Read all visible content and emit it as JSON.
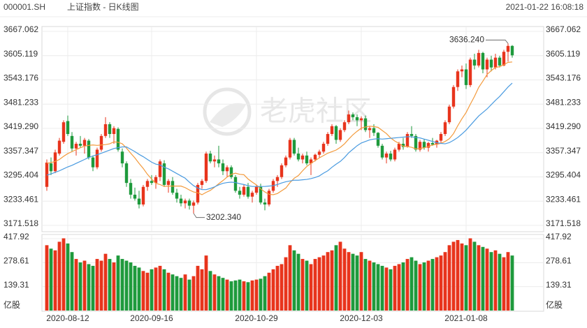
{
  "header": {
    "code": "000001.SH",
    "name": "上证指数 - 日K线图",
    "time": "2021-01-22 16:08:18"
  },
  "watermark": "老虎社区",
  "chart_data": {
    "type": "candlestick",
    "categories": [
      null,
      null,
      null,
      null,
      null,
      "2020-08-12",
      null,
      null,
      null,
      null,
      null,
      null,
      null,
      null,
      null,
      null,
      null,
      null,
      null,
      null,
      null,
      null,
      null,
      null,
      null,
      "2020-09-16",
      null,
      null,
      null,
      null,
      null,
      null,
      null,
      null,
      null,
      null,
      null,
      null,
      null,
      null,
      null,
      null,
      null,
      null,
      null,
      null,
      null,
      null,
      null,
      null,
      "2020-10-29",
      null,
      null,
      null,
      null,
      null,
      null,
      null,
      null,
      null,
      null,
      null,
      null,
      null,
      null,
      null,
      null,
      null,
      null,
      null,
      null,
      null,
      null,
      null,
      null,
      "2020-12-03",
      null,
      null,
      null,
      null,
      null,
      null,
      null,
      null,
      null,
      null,
      null,
      null,
      null,
      null,
      null,
      null,
      null,
      null,
      null,
      null,
      null,
      null,
      null,
      null,
      "2021-01-08",
      null,
      null,
      null,
      null,
      null,
      null,
      null,
      null,
      null,
      null,
      null
    ],
    "open": [
      3270,
      3330,
      3310,
      3355,
      3385,
      3438,
      3400,
      3368,
      3380,
      3375,
      3388,
      3345,
      3320,
      3365,
      3400,
      3430,
      3405,
      3418,
      3360,
      3330,
      3280,
      3250,
      3240,
      3225,
      3270,
      3285,
      3280,
      3295,
      3330,
      3275,
      3285,
      3255,
      3240,
      3228,
      3235,
      3222,
      3230,
      3275,
      3285,
      3355,
      3335,
      3340,
      3330,
      3310,
      3320,
      3295,
      3260,
      3250,
      3270,
      3245,
      3255,
      3270,
      3230,
      3225,
      3260,
      3285,
      3295,
      3325,
      3345,
      3390,
      3355,
      3340,
      3350,
      3330,
      3340,
      3352,
      3360,
      3380,
      3405,
      3425,
      3390,
      3415,
      3435,
      3455,
      3448,
      3440,
      3445,
      3415,
      3420,
      3408,
      3375,
      3345,
      3355,
      3340,
      3365,
      3380,
      3372,
      3405,
      3400,
      3365,
      3385,
      3370,
      3382,
      3378,
      3388,
      3405,
      3435,
      3475,
      3525,
      3565,
      3570,
      3530,
      3595,
      3580,
      3612,
      3570,
      3595,
      3575,
      3600,
      3580,
      3615,
      3630
    ],
    "high": [
      3340,
      3345,
      3365,
      3395,
      3440,
      3452,
      3410,
      3385,
      3400,
      3395,
      3392,
      3350,
      3370,
      3405,
      3448,
      3435,
      3425,
      3422,
      3368,
      3335,
      3290,
      3268,
      3260,
      3275,
      3290,
      3300,
      3300,
      3340,
      3338,
      3290,
      3295,
      3265,
      3250,
      3240,
      3240,
      3235,
      3280,
      3290,
      3360,
      3362,
      3350,
      3375,
      3340,
      3325,
      3325,
      3300,
      3270,
      3275,
      3280,
      3260,
      3275,
      3278,
      3240,
      3265,
      3290,
      3300,
      3330,
      3350,
      3395,
      3395,
      3370,
      3355,
      3360,
      3345,
      3355,
      3365,
      3385,
      3410,
      3430,
      3428,
      3420,
      3440,
      3465,
      3460,
      3455,
      3450,
      3452,
      3425,
      3430,
      3410,
      3380,
      3360,
      3362,
      3370,
      3385,
      3395,
      3410,
      3425,
      3405,
      3390,
      3392,
      3385,
      3395,
      3390,
      3410,
      3440,
      3480,
      3530,
      3570,
      3580,
      3585,
      3600,
      3610,
      3620,
      3615,
      3600,
      3605,
      3610,
      3605,
      3620,
      3636.24,
      3632
    ],
    "low": [
      3260,
      3300,
      3305,
      3350,
      3380,
      3400,
      3360,
      3350,
      3370,
      3355,
      3340,
      3310,
      3315,
      3360,
      3395,
      3395,
      3380,
      3360,
      3320,
      3270,
      3240,
      3235,
      3215,
      3220,
      3260,
      3275,
      3265,
      3285,
      3270,
      3255,
      3250,
      3230,
      3220,
      3215,
      3212,
      3202.34,
      3225,
      3265,
      3280,
      3330,
      3320,
      3320,
      3300,
      3295,
      3290,
      3255,
      3240,
      3245,
      3240,
      3230,
      3250,
      3225,
      3210,
      3220,
      3255,
      3270,
      3290,
      3320,
      3340,
      3350,
      3335,
      3330,
      3325,
      3300,
      3335,
      3345,
      3355,
      3375,
      3400,
      3380,
      3385,
      3410,
      3430,
      3440,
      3425,
      3415,
      3410,
      3395,
      3400,
      3370,
      3340,
      3330,
      3335,
      3335,
      3360,
      3365,
      3370,
      3395,
      3360,
      3360,
      3365,
      3360,
      3375,
      3370,
      3380,
      3400,
      3430,
      3470,
      3515,
      3550,
      3520,
      3525,
      3570,
      3575,
      3560,
      3550,
      3565,
      3570,
      3575,
      3578,
      3590,
      3600
    ],
    "close": [
      3332,
      3310,
      3358,
      3388,
      3435,
      3405,
      3368,
      3380,
      3375,
      3390,
      3345,
      3320,
      3365,
      3400,
      3430,
      3405,
      3420,
      3365,
      3330,
      3280,
      3250,
      3240,
      3225,
      3270,
      3285,
      3280,
      3295,
      3335,
      3275,
      3285,
      3255,
      3240,
      3228,
      3235,
      3222,
      3230,
      3275,
      3285,
      3355,
      3335,
      3340,
      3330,
      3310,
      3320,
      3295,
      3260,
      3250,
      3270,
      3245,
      3255,
      3270,
      3230,
      3225,
      3260,
      3285,
      3295,
      3325,
      3345,
      3390,
      3355,
      3340,
      3350,
      3330,
      3340,
      3352,
      3360,
      3380,
      3405,
      3425,
      3390,
      3415,
      3435,
      3455,
      3448,
      3440,
      3445,
      3415,
      3420,
      3408,
      3375,
      3345,
      3355,
      3340,
      3365,
      3380,
      3372,
      3405,
      3400,
      3365,
      3385,
      3370,
      3382,
      3378,
      3388,
      3405,
      3435,
      3475,
      3525,
      3565,
      3570,
      3530,
      3595,
      3580,
      3612,
      3570,
      3595,
      3575,
      3600,
      3580,
      3615,
      3630,
      3606
    ],
    "ma10": [
      3330,
      3332,
      3335,
      3340,
      3348,
      3355,
      3360,
      3365,
      3370,
      3374,
      3376,
      3377,
      3376,
      3377,
      3378,
      3380,
      3385,
      3384,
      3380,
      3369,
      3356,
      3344,
      3330,
      3317,
      3302,
      3290,
      3279,
      3276,
      3271,
      3272,
      3272,
      3272,
      3272,
      3268,
      3262,
      3257,
      3255,
      3250,
      3256,
      3261,
      3269,
      3278,
      3286,
      3295,
      3302,
      3305,
      3302,
      3301,
      3290,
      3282,
      3275,
      3265,
      3257,
      3251,
      3250,
      3253,
      3260,
      3267,
      3281,
      3292,
      3299,
      3311,
      3322,
      3330,
      3337,
      3344,
      3350,
      3356,
      3360,
      3364,
      3371,
      3380,
      3392,
      3403,
      3412,
      3420,
      3423,
      3425,
      3424,
      3422,
      3414,
      3406,
      3395,
      3387,
      3381,
      3374,
      3373,
      3371,
      3367,
      3368,
      3370,
      3373,
      3377,
      3379,
      3381,
      3386,
      3393,
      3406,
      3426,
      3444,
      3460,
      3481,
      3501,
      3524,
      3540,
      3557,
      3567,
      3575,
      3577,
      3582,
      3588,
      3589
    ],
    "ma20": [
      3300,
      3303,
      3307,
      3311,
      3316,
      3321,
      3325,
      3330,
      3335,
      3340,
      3345,
      3349,
      3352,
      3356,
      3360,
      3364,
      3368,
      3370,
      3372,
      3372,
      3366,
      3360,
      3353,
      3347,
      3340,
      3333,
      3328,
      3326,
      3320,
      3316,
      3310,
      3304,
      3298,
      3292,
      3282,
      3273,
      3267,
      3263,
      3263,
      3266,
      3270,
      3275,
      3279,
      3281,
      3282,
      3281,
      3278,
      3276,
      3273,
      3271,
      3271,
      3271,
      3271,
      3272,
      3273,
      3276,
      3280,
      3283,
      3285,
      3287,
      3287,
      3288,
      3289,
      3291,
      3294,
      3298,
      3305,
      3311,
      3320,
      3328,
      3335,
      3345,
      3357,
      3366,
      3375,
      3382,
      3386,
      3390,
      3392,
      3393,
      3392,
      3393,
      3394,
      3395,
      3396,
      3397,
      3398,
      3398,
      3396,
      3395,
      3392,
      3389,
      3386,
      3383,
      3381,
      3380,
      3383,
      3389,
      3396,
      3405,
      3415,
      3427,
      3439,
      3451,
      3460,
      3469,
      3480,
      3491,
      3501,
      3513,
      3525,
      3535
    ],
    "volume": [
      380,
      360,
      350,
      400,
      420,
      390,
      340,
      300,
      280,
      290,
      270,
      260,
      300,
      290,
      330,
      300,
      280,
      320,
      300,
      290,
      280,
      260,
      250,
      230,
      220,
      240,
      250,
      260,
      240,
      220,
      210,
      200,
      190,
      210,
      180,
      200,
      260,
      240,
      320,
      230,
      210,
      200,
      190,
      180,
      170,
      175,
      180,
      170,
      165,
      175,
      180,
      185,
      200,
      220,
      240,
      260,
      270,
      310,
      380,
      350,
      330,
      300,
      290,
      270,
      300,
      310,
      320,
      340,
      350,
      380,
      400,
      360,
      340,
      330,
      320,
      340,
      300,
      290,
      280,
      270,
      260,
      250,
      240,
      260,
      270,
      280,
      300,
      310,
      290,
      270,
      280,
      290,
      300,
      310,
      320,
      340,
      380,
      400,
      410,
      390,
      380,
      420,
      400,
      380,
      370,
      360,
      340,
      350,
      330,
      310,
      340,
      320
    ],
    "up_color": "#e8341c",
    "down_color": "#1e9a3c",
    "ma10_color": "#f39a3c",
    "ma20_color": "#4a9be0",
    "ylim": [
      3171.518,
      3667.062
    ],
    "yticks": [
      3171.518,
      3233.461,
      3295.404,
      3357.347,
      {
        "value": 3419.29,
        "label": "3419.290"
      },
      3481.233,
      3543.176,
      3605.119,
      3667.062
    ],
    "volume_ylim": [
      0,
      417.92
    ],
    "volume_yticks": [
      139.31,
      278.61,
      417.92
    ],
    "volume_unit": "亿股",
    "annotations": [
      {
        "value": 3636.24,
        "label": "3636.240",
        "index": 110,
        "at": "high"
      },
      {
        "value": 3202.34,
        "label": "3202.340",
        "index": 35,
        "at": "low"
      }
    ],
    "grid": true
  }
}
